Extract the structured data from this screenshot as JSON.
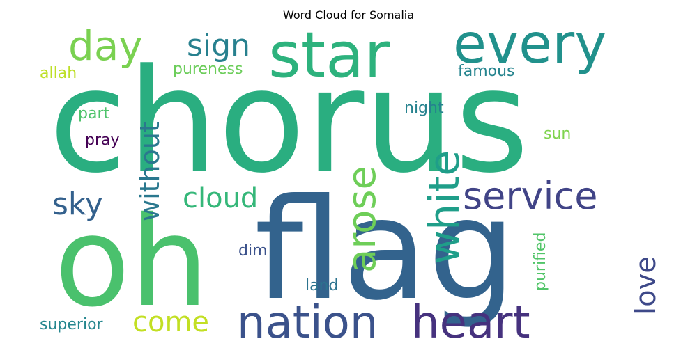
{
  "chart_data": {
    "type": "wordcloud",
    "title": "Word Cloud for Somalia",
    "words": [
      {
        "text": "chorus",
        "weight": 1.0,
        "color": "#2aae80"
      },
      {
        "text": "flag",
        "weight": 0.96,
        "color": "#33638d"
      },
      {
        "text": "oh",
        "weight": 0.85,
        "color": "#4ac16d"
      },
      {
        "text": "star",
        "weight": 0.42,
        "color": "#2db27d"
      },
      {
        "text": "every",
        "weight": 0.36,
        "color": "#21918c"
      },
      {
        "text": "nation",
        "weight": 0.33,
        "color": "#3b528b"
      },
      {
        "text": "heart",
        "weight": 0.33,
        "color": "#46327e"
      },
      {
        "text": "white",
        "weight": 0.3,
        "color": "#1f9e89"
      },
      {
        "text": "arose",
        "weight": 0.3,
        "color": "#6ece58"
      },
      {
        "text": "day",
        "weight": 0.28,
        "color": "#7ad151"
      },
      {
        "text": "service",
        "weight": 0.27,
        "color": "#414487"
      },
      {
        "text": "without",
        "weight": 0.22,
        "color": "#2a788e"
      },
      {
        "text": "cloud",
        "weight": 0.22,
        "color": "#35b779"
      },
      {
        "text": "sign",
        "weight": 0.22,
        "color": "#27808e"
      },
      {
        "text": "love",
        "weight": 0.22,
        "color": "#3e4989"
      },
      {
        "text": "sky",
        "weight": 0.22,
        "color": "#34618d"
      },
      {
        "text": "come",
        "weight": 0.22,
        "color": "#c2df23"
      },
      {
        "text": "purified",
        "weight": 0.12,
        "color": "#52c569"
      },
      {
        "text": "pureness",
        "weight": 0.12,
        "color": "#6ccd5a"
      },
      {
        "text": "superior",
        "weight": 0.12,
        "color": "#24868e"
      },
      {
        "text": "allah",
        "weight": 0.12,
        "color": "#bddf26"
      },
      {
        "text": "famous",
        "weight": 0.12,
        "color": "#25848e"
      },
      {
        "text": "night",
        "weight": 0.12,
        "color": "#26828e"
      },
      {
        "text": "part",
        "weight": 0.12,
        "color": "#4ec36b"
      },
      {
        "text": "pray",
        "weight": 0.12,
        "color": "#440154"
      },
      {
        "text": "sun",
        "weight": 0.12,
        "color": "#7fd34e"
      },
      {
        "text": "dim",
        "weight": 0.12,
        "color": "#3b528b"
      },
      {
        "text": "land",
        "weight": 0.12,
        "color": "#2c738e"
      }
    ]
  }
}
